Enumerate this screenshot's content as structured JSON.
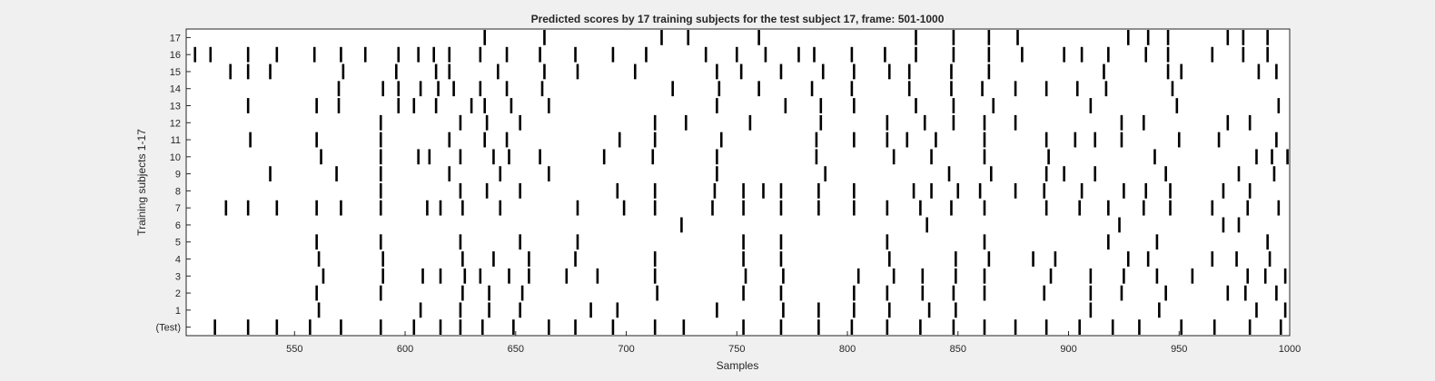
{
  "chart_data": {
    "type": "raster",
    "title": "Predicted scores by 17 training subjects for the test subject 17, frame: 501-1000",
    "xlabel": "Samples",
    "ylabel": "Training subjects 1-17",
    "xlim": [
      501,
      1000
    ],
    "xticks": [
      550,
      600,
      650,
      700,
      750,
      800,
      850,
      900,
      950,
      1000
    ],
    "grid": false,
    "legend": "none",
    "colors": {
      "background": "#f0f0f0",
      "axes": "#ffffff",
      "event": "#000000"
    },
    "rows": [
      {
        "label": "17",
        "events": [
          636,
          663,
          716,
          728,
          760,
          831,
          848,
          864,
          877,
          927,
          936,
          945,
          972,
          979,
          990
        ]
      },
      {
        "label": "16",
        "events": [
          505,
          512,
          529,
          542,
          559,
          571,
          582,
          597,
          606,
          613,
          620,
          634,
          646,
          661,
          677,
          694,
          709,
          736,
          750,
          763,
          778,
          785,
          802,
          817,
          831,
          848,
          864,
          879,
          898,
          906,
          918,
          935,
          945,
          965,
          979,
          990
        ]
      },
      {
        "label": "15",
        "events": [
          521,
          529,
          539,
          572,
          596,
          614,
          620,
          642,
          663,
          678,
          704,
          741,
          752,
          770,
          789,
          803,
          819,
          828,
          847,
          864,
          916,
          945,
          951,
          986,
          994
        ]
      },
      {
        "label": "14",
        "events": [
          570,
          590,
          597,
          607,
          615,
          622,
          634,
          646,
          662,
          721,
          742,
          760,
          784,
          802,
          828,
          847,
          861,
          876,
          890,
          904,
          917,
          947
        ]
      },
      {
        "label": "13",
        "events": [
          529,
          560,
          570,
          597,
          604,
          614,
          630,
          636,
          648,
          665,
          741,
          772,
          788,
          803,
          831,
          848,
          866,
          910,
          949,
          995
        ]
      },
      {
        "label": "12",
        "events": [
          589,
          625,
          637,
          652,
          713,
          727,
          756,
          788,
          818,
          835,
          848,
          862,
          876,
          924,
          934,
          972,
          982
        ]
      },
      {
        "label": "11",
        "events": [
          530,
          560,
          589,
          620,
          636,
          646,
          697,
          713,
          743,
          786,
          803,
          818,
          827,
          840,
          862,
          890,
          903,
          912,
          924,
          950,
          968,
          994
        ]
      },
      {
        "label": "10",
        "events": [
          562,
          589,
          606,
          611,
          625,
          640,
          647,
          661,
          690,
          712,
          741,
          786,
          821,
          838,
          862,
          891,
          939,
          985,
          992,
          999
        ]
      },
      {
        "label": "9",
        "events": [
          539,
          569,
          589,
          620,
          643,
          665,
          741,
          790,
          846,
          865,
          890,
          898,
          912,
          944,
          977,
          993
        ]
      },
      {
        "label": "8",
        "events": [
          589,
          625,
          637,
          652,
          696,
          713,
          740,
          753,
          762,
          770,
          787,
          803,
          830,
          838,
          850,
          860,
          876,
          889,
          906,
          925,
          935,
          946,
          970,
          982
        ]
      },
      {
        "label": "7",
        "events": [
          519,
          529,
          542,
          560,
          571,
          589,
          610,
          616,
          626,
          643,
          678,
          699,
          713,
          739,
          753,
          770,
          787,
          803,
          818,
          833,
          847,
          862,
          890,
          905,
          918,
          934,
          946,
          965,
          981,
          995
        ]
      },
      {
        "label": "6",
        "events": [
          725,
          836,
          923,
          970,
          977
        ]
      },
      {
        "label": "5",
        "events": [
          560,
          589,
          625,
          652,
          678,
          753,
          770,
          818,
          862,
          918,
          940,
          990
        ]
      },
      {
        "label": "4",
        "events": [
          561,
          590,
          626,
          640,
          656,
          677,
          713,
          753,
          770,
          819,
          849,
          864,
          884,
          894,
          927,
          936,
          965,
          976,
          991
        ]
      },
      {
        "label": "3",
        "events": [
          563,
          590,
          608,
          616,
          627,
          634,
          647,
          656,
          673,
          687,
          713,
          754,
          771,
          805,
          821,
          834,
          849,
          862,
          892,
          910,
          925,
          940,
          956,
          981,
          989,
          998
        ]
      },
      {
        "label": "2",
        "events": [
          560,
          589,
          626,
          638,
          653,
          714,
          753,
          770,
          803,
          818,
          834,
          848,
          862,
          889,
          910,
          924,
          944,
          972,
          980,
          994
        ]
      },
      {
        "label": "1",
        "events": [
          561,
          607,
          625,
          638,
          652,
          684,
          696,
          741,
          771,
          787,
          803,
          819,
          837,
          849,
          910,
          941,
          985,
          998
        ]
      },
      {
        "label": "(Test)",
        "events": [
          514,
          529,
          542,
          557,
          571,
          589,
          604,
          616,
          625,
          635,
          649,
          665,
          677,
          694,
          713,
          726,
          753,
          770,
          787,
          802,
          818,
          833,
          848,
          862,
          876,
          890,
          905,
          920,
          932,
          951,
          966,
          982,
          996
        ]
      }
    ]
  }
}
